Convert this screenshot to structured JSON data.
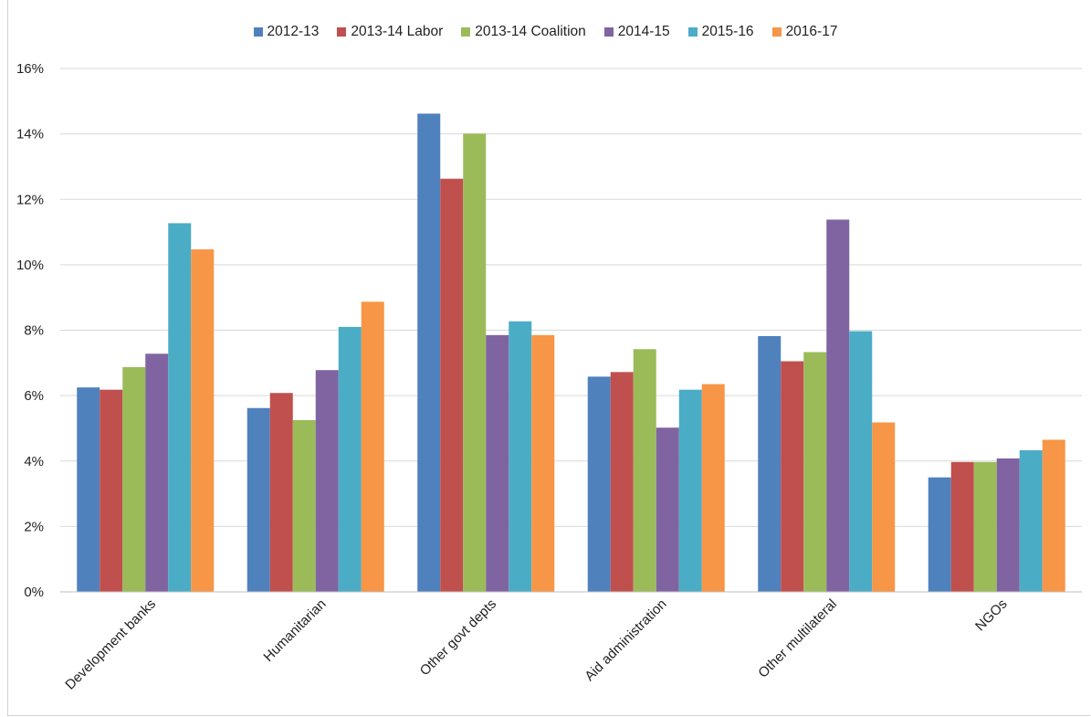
{
  "chart_data": {
    "type": "bar",
    "categories": [
      "Development banks",
      "Humanitarian",
      "Other govt depts",
      "Aid administration",
      "Other multilateral",
      "NGOs"
    ],
    "series": [
      {
        "name": "2012-13",
        "color": "#4f81bd",
        "values": [
          6.25,
          5.62,
          14.62,
          6.58,
          7.82,
          3.5
        ]
      },
      {
        "name": "2013-14 Labor",
        "color": "#c0504d",
        "values": [
          6.18,
          6.08,
          12.63,
          6.72,
          7.05,
          3.97
        ]
      },
      {
        "name": "2013-14 Coalition",
        "color": "#9bbb59",
        "values": [
          6.87,
          5.25,
          14.01,
          7.42,
          7.33,
          3.97
        ]
      },
      {
        "name": "2014-15",
        "color": "#8064a2",
        "values": [
          7.28,
          6.78,
          7.85,
          5.02,
          11.38,
          4.08
        ]
      },
      {
        "name": "2015-16",
        "color": "#4bacc6",
        "values": [
          11.27,
          8.1,
          8.27,
          6.18,
          7.97,
          4.33
        ]
      },
      {
        "name": "2016-17",
        "color": "#f79646",
        "values": [
          10.47,
          8.87,
          7.85,
          6.35,
          5.18,
          4.65
        ]
      }
    ],
    "ylim": [
      0,
      16
    ],
    "yticks": [
      "0%",
      "2%",
      "4%",
      "6%",
      "8%",
      "10%",
      "12%",
      "14%",
      "16%"
    ],
    "ytick_values": [
      0,
      2,
      4,
      6,
      8,
      10,
      12,
      14,
      16
    ],
    "grid": true,
    "legend_position": "top",
    "title": "",
    "xlabel": "",
    "ylabel": ""
  }
}
